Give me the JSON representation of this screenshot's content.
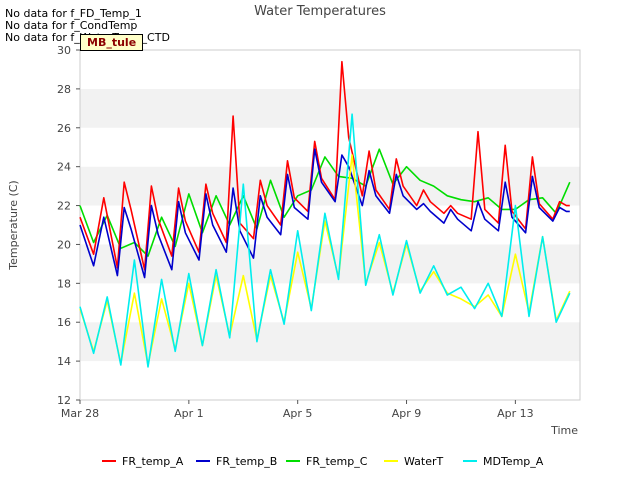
{
  "no_data_messages": [
    "No data for f_FD_Temp_1",
    "No data for f_CondTemp",
    "No data for f_WaterTemp_CTD"
  ],
  "site_label": "MB_tule",
  "chart_data": {
    "type": "line",
    "title": "Water Temperatures",
    "xlabel": "Time",
    "ylabel": "Temperature (C)",
    "xlim": [
      "2024-03-28",
      "2024-04-15T09:00"
    ],
    "ylim": [
      12,
      30
    ],
    "x_tick_labels": [
      "Mar 28",
      "Apr 1",
      "Apr 5",
      "Apr 9",
      "Apr 13"
    ],
    "y_ticks": [
      12,
      14,
      16,
      18,
      20,
      22,
      24,
      26,
      28,
      30
    ],
    "grid": "horizontal bands",
    "legend_position": "bottom",
    "series": [
      {
        "name": "FR_temp_A",
        "color": "#ff0000",
        "x": [
          "2024-03-28T00:00",
          "2024-03-28T12:00",
          "2024-03-28T21:00",
          "2024-03-29T09:00",
          "2024-03-29T15:00",
          "2024-03-29T21:00",
          "2024-03-30T09:00",
          "2024-03-30T15:00",
          "2024-03-30T21:00",
          "2024-03-31T09:00",
          "2024-03-31T15:00",
          "2024-03-31T21:00",
          "2024-04-01T09:00",
          "2024-04-01T15:00",
          "2024-04-01T21:00",
          "2024-04-02T09:00",
          "2024-04-02T15:00",
          "2024-04-02T21:00",
          "2024-04-03T09:00",
          "2024-04-03T15:00",
          "2024-04-03T21:00",
          "2024-04-04T09:00",
          "2024-04-04T15:00",
          "2024-04-04T21:00",
          "2024-04-05T09:00",
          "2024-04-05T15:00",
          "2024-04-05T21:00",
          "2024-04-06T09:00",
          "2024-04-06T15:00",
          "2024-04-06T21:00",
          "2024-04-07T09:00",
          "2024-04-07T15:00",
          "2024-04-07T21:00",
          "2024-04-08T09:00",
          "2024-04-08T15:00",
          "2024-04-08T21:00",
          "2024-04-09T09:00",
          "2024-04-09T15:00",
          "2024-04-09T21:00",
          "2024-04-10T09:00",
          "2024-04-10T15:00",
          "2024-04-10T21:00",
          "2024-04-11T09:00",
          "2024-04-11T15:00",
          "2024-04-11T21:00",
          "2024-04-12T09:00",
          "2024-04-12T15:00",
          "2024-04-12T21:00",
          "2024-04-13T09:00",
          "2024-04-13T15:00",
          "2024-04-13T21:00",
          "2024-04-14T09:00",
          "2024-04-14T15:00",
          "2024-04-14T21:00",
          "2024-04-15T00:00"
        ],
        "y": [
          21.4,
          19.5,
          22.4,
          18.8,
          23.2,
          21.8,
          18.7,
          23.0,
          21.3,
          19.4,
          22.9,
          21.2,
          19.6,
          23.1,
          21.6,
          20.1,
          26.6,
          21.1,
          20.3,
          23.3,
          22.0,
          21.0,
          24.3,
          22.4,
          21.7,
          25.3,
          23.4,
          22.3,
          29.4,
          25.5,
          22.5,
          24.8,
          22.8,
          21.8,
          24.4,
          23.0,
          22.0,
          22.8,
          22.2,
          21.6,
          22.0,
          21.6,
          21.3,
          25.8,
          21.8,
          21.1,
          25.1,
          21.7,
          20.8,
          24.5,
          22.1,
          21.3,
          22.2,
          22.0,
          22.0
        ]
      },
      {
        "name": "FR_temp_B",
        "color": "#0000cc",
        "x": [
          "2024-03-28T00:00",
          "2024-03-28T12:00",
          "2024-03-28T21:00",
          "2024-03-29T09:00",
          "2024-03-29T15:00",
          "2024-03-29T21:00",
          "2024-03-30T09:00",
          "2024-03-30T15:00",
          "2024-03-30T21:00",
          "2024-03-31T09:00",
          "2024-03-31T15:00",
          "2024-03-31T21:00",
          "2024-04-01T09:00",
          "2024-04-01T15:00",
          "2024-04-01T21:00",
          "2024-04-02T09:00",
          "2024-04-02T15:00",
          "2024-04-02T21:00",
          "2024-04-03T09:00",
          "2024-04-03T15:00",
          "2024-04-03T21:00",
          "2024-04-04T09:00",
          "2024-04-04T15:00",
          "2024-04-04T21:00",
          "2024-04-05T09:00",
          "2024-04-05T15:00",
          "2024-04-05T21:00",
          "2024-04-06T09:00",
          "2024-04-06T15:00",
          "2024-04-06T21:00",
          "2024-04-07T09:00",
          "2024-04-07T15:00",
          "2024-04-07T21:00",
          "2024-04-08T09:00",
          "2024-04-08T15:00",
          "2024-04-08T21:00",
          "2024-04-09T09:00",
          "2024-04-09T15:00",
          "2024-04-09T21:00",
          "2024-04-10T09:00",
          "2024-04-10T15:00",
          "2024-04-10T21:00",
          "2024-04-11T09:00",
          "2024-04-11T15:00",
          "2024-04-11T21:00",
          "2024-04-12T09:00",
          "2024-04-12T15:00",
          "2024-04-12T21:00",
          "2024-04-13T09:00",
          "2024-04-13T15:00",
          "2024-04-13T21:00",
          "2024-04-14T09:00",
          "2024-04-14T15:00",
          "2024-04-14T21:00",
          "2024-04-15T00:00"
        ],
        "y": [
          21.0,
          18.9,
          21.4,
          18.4,
          21.9,
          20.8,
          18.3,
          22.0,
          20.5,
          18.7,
          22.2,
          20.6,
          19.2,
          22.6,
          21.0,
          19.6,
          22.9,
          20.7,
          19.3,
          22.5,
          21.4,
          20.5,
          23.6,
          21.9,
          21.3,
          24.9,
          23.2,
          22.2,
          24.6,
          24.0,
          22.0,
          23.8,
          22.5,
          21.6,
          23.6,
          22.5,
          21.8,
          22.1,
          21.7,
          21.1,
          21.8,
          21.3,
          20.7,
          22.2,
          21.3,
          20.7,
          23.2,
          21.4,
          20.6,
          23.5,
          21.9,
          21.2,
          21.9,
          21.7,
          21.7
        ]
      },
      {
        "name": "FR_temp_C",
        "color": "#00dd00",
        "x": [
          "2024-03-28T00:00",
          "2024-03-28T12:00",
          "2024-03-29T00:00",
          "2024-03-29T12:00",
          "2024-03-30T00:00",
          "2024-03-30T12:00",
          "2024-03-31T00:00",
          "2024-03-31T12:00",
          "2024-04-01T00:00",
          "2024-04-01T12:00",
          "2024-04-02T00:00",
          "2024-04-02T12:00",
          "2024-04-03T00:00",
          "2024-04-03T12:00",
          "2024-04-04T00:00",
          "2024-04-04T12:00",
          "2024-04-05T00:00",
          "2024-04-05T12:00",
          "2024-04-06T00:00",
          "2024-04-06T12:00",
          "2024-04-07T00:00",
          "2024-04-07T12:00",
          "2024-04-08T00:00",
          "2024-04-08T12:00",
          "2024-04-09T00:00",
          "2024-04-09T12:00",
          "2024-04-10T00:00",
          "2024-04-10T12:00",
          "2024-04-11T00:00",
          "2024-04-11T12:00",
          "2024-04-12T00:00",
          "2024-04-12T12:00",
          "2024-04-13T00:00",
          "2024-04-13T12:00",
          "2024-04-14T00:00",
          "2024-04-14T12:00",
          "2024-04-15T00:00"
        ],
        "y": [
          22.0,
          20.1,
          21.5,
          19.8,
          20.1,
          19.4,
          21.4,
          19.9,
          22.6,
          20.6,
          22.5,
          21.0,
          22.5,
          20.8,
          23.3,
          21.4,
          22.5,
          22.8,
          24.5,
          23.5,
          23.4,
          23.0,
          24.9,
          23.1,
          24.0,
          23.3,
          23.0,
          22.5,
          22.3,
          22.2,
          22.4,
          21.8,
          21.8,
          22.3,
          22.4,
          21.6,
          23.2
        ]
      },
      {
        "name": "WaterT",
        "color": "#ffff00",
        "x": [
          "2024-03-28T00:00",
          "2024-03-28T12:00",
          "2024-03-29T00:00",
          "2024-03-29T12:00",
          "2024-03-30T00:00",
          "2024-03-30T12:00",
          "2024-03-31T00:00",
          "2024-03-31T12:00",
          "2024-04-01T00:00",
          "2024-04-01T12:00",
          "2024-04-02T00:00",
          "2024-04-02T12:00",
          "2024-04-03T00:00",
          "2024-04-03T12:00",
          "2024-04-04T00:00",
          "2024-04-04T12:00",
          "2024-04-05T00:00",
          "2024-04-05T12:00",
          "2024-04-06T00:00",
          "2024-04-06T12:00",
          "2024-04-07T00:00",
          "2024-04-07T12:00",
          "2024-04-08T00:00",
          "2024-04-08T12:00",
          "2024-04-09T00:00",
          "2024-04-09T12:00",
          "2024-04-10T00:00",
          "2024-04-10T12:00",
          "2024-04-11T00:00",
          "2024-04-11T12:00",
          "2024-04-12T00:00",
          "2024-04-12T12:00",
          "2024-04-13T00:00",
          "2024-04-13T12:00",
          "2024-04-14T00:00",
          "2024-04-14T12:00",
          "2024-04-15T00:00"
        ],
        "y": [
          16.7,
          14.5,
          17.1,
          13.9,
          17.5,
          13.8,
          17.2,
          14.6,
          18.0,
          14.8,
          18.4,
          15.3,
          18.4,
          15.1,
          18.4,
          16.0,
          19.6,
          16.7,
          21.2,
          18.3,
          24.6,
          18.0,
          20.1,
          17.5,
          20.0,
          17.6,
          18.6,
          17.5,
          17.2,
          16.8,
          17.4,
          16.3,
          19.5,
          16.5,
          20.4,
          16.1,
          17.6
        ]
      },
      {
        "name": "MDTemp_A",
        "color": "#00eeee",
        "x": [
          "2024-03-28T00:00",
          "2024-03-28T12:00",
          "2024-03-29T00:00",
          "2024-03-29T12:00",
          "2024-03-30T00:00",
          "2024-03-30T12:00",
          "2024-03-31T00:00",
          "2024-03-31T12:00",
          "2024-04-01T00:00",
          "2024-04-01T12:00",
          "2024-04-02T00:00",
          "2024-04-02T12:00",
          "2024-04-03T00:00",
          "2024-04-03T12:00",
          "2024-04-04T00:00",
          "2024-04-04T12:00",
          "2024-04-05T00:00",
          "2024-04-05T12:00",
          "2024-04-06T00:00",
          "2024-04-06T12:00",
          "2024-04-07T00:00",
          "2024-04-07T12:00",
          "2024-04-08T00:00",
          "2024-04-08T12:00",
          "2024-04-09T00:00",
          "2024-04-09T12:00",
          "2024-04-10T00:00",
          "2024-04-10T12:00",
          "2024-04-11T00:00",
          "2024-04-11T12:00",
          "2024-04-12T00:00",
          "2024-04-12T12:00",
          "2024-04-13T00:00",
          "2024-04-13T12:00",
          "2024-04-14T00:00",
          "2024-04-14T12:00",
          "2024-04-15T00:00"
        ],
        "y": [
          16.8,
          14.4,
          17.3,
          13.8,
          19.2,
          13.7,
          18.2,
          14.5,
          18.5,
          14.8,
          18.7,
          15.2,
          23.1,
          15.0,
          18.7,
          15.9,
          20.7,
          16.6,
          21.6,
          18.2,
          26.7,
          17.9,
          20.5,
          17.4,
          20.2,
          17.5,
          18.9,
          17.4,
          17.8,
          16.7,
          18.0,
          16.3,
          22.0,
          16.3,
          20.4,
          16.0,
          17.5
        ]
      }
    ]
  }
}
